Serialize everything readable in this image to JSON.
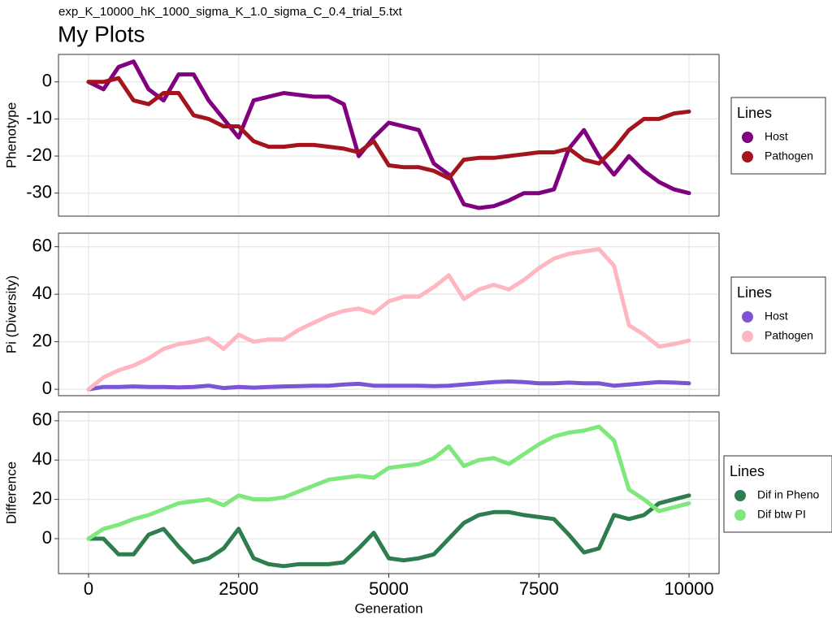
{
  "subtitle": "exp_K_10000_hK_1000_sigma_K_1.0_sigma_C_0.4_trial_5.txt",
  "title": "My Plots",
  "chart_data": [
    {
      "type": "line",
      "ylabel": "Phenotype",
      "legend_title": "Lines",
      "legend": "right",
      "grid": true,
      "xlim": [
        -500,
        10500
      ],
      "xticks": [
        0,
        2500,
        5000,
        7500,
        10000
      ],
      "ylim": [
        -36.2,
        7.4
      ],
      "yticks": [
        -30,
        -20,
        -10,
        0
      ],
      "x": [
        0,
        250,
        500,
        750,
        1000,
        1250,
        1500,
        1750,
        2000,
        2250,
        2500,
        2750,
        3000,
        3250,
        3500,
        3750,
        4000,
        4250,
        4500,
        4750,
        5000,
        5250,
        5500,
        5750,
        6000,
        6250,
        6500,
        6750,
        7000,
        7250,
        7500,
        7750,
        8000,
        8250,
        8500,
        8750,
        9000,
        9250,
        9500,
        9750,
        10000
      ],
      "series": [
        {
          "name": "Host",
          "color": "#800080",
          "values": [
            0,
            -2,
            4,
            5.5,
            -2,
            -5,
            2,
            2,
            -5,
            -10,
            -15,
            -5,
            -4,
            -3,
            -3.5,
            -4,
            -4,
            -6,
            -20,
            -15,
            -11,
            -12,
            -13,
            -22,
            -25,
            -33,
            -34,
            -33.5,
            -32,
            -30,
            -30,
            -29,
            -18,
            -13,
            -20,
            -25,
            -20,
            -24,
            -27,
            -29,
            -30
          ]
        },
        {
          "name": "Pathogen",
          "color": "#a3141c",
          "values": [
            0,
            0,
            1,
            -5,
            -6,
            -3,
            -3,
            -9,
            -10,
            -12,
            -12,
            -16,
            -17.5,
            -17.5,
            -17,
            -17,
            -17.5,
            -18,
            -19,
            -16,
            -22.5,
            -23,
            -23,
            -24,
            -26,
            -21,
            -20.5,
            -20.5,
            -20,
            -19.5,
            -19,
            -19,
            -18,
            -21,
            -22,
            -18,
            -13,
            -10,
            -10,
            -8.5,
            -8
          ]
        }
      ]
    },
    {
      "type": "line",
      "ylabel": "Pi (Diversity)",
      "legend_title": "Lines",
      "legend": "right",
      "grid": true,
      "xlim": [
        -500,
        10500
      ],
      "xticks": [
        0,
        2500,
        5000,
        7500,
        10000
      ],
      "ylim": [
        -2.7,
        65.7
      ],
      "yticks": [
        0,
        20,
        40,
        60
      ],
      "x": [
        0,
        250,
        500,
        750,
        1000,
        1250,
        1500,
        1750,
        2000,
        2250,
        2500,
        2750,
        3000,
        3250,
        3500,
        3750,
        4000,
        4250,
        4500,
        4750,
        5000,
        5250,
        5500,
        5750,
        6000,
        6250,
        6500,
        6750,
        7000,
        7250,
        7500,
        7750,
        8000,
        8250,
        8500,
        8750,
        9000,
        9250,
        9500,
        9750,
        10000
      ],
      "series": [
        {
          "name": "Host",
          "color": "#7b55d3",
          "values": [
            0,
            1,
            1,
            1.2,
            1,
            1,
            0.8,
            1,
            1.5,
            0.5,
            1,
            0.7,
            1,
            1.2,
            1.3,
            1.5,
            1.5,
            2,
            2.3,
            1.5,
            1.5,
            1.5,
            1.5,
            1.3,
            1.5,
            2,
            2.5,
            3,
            3.3,
            3,
            2.5,
            2.5,
            2.8,
            2.5,
            2.5,
            1.5,
            2,
            2.5,
            3,
            2.8,
            2.5
          ]
        },
        {
          "name": "Pathogen",
          "color": "#ffb6c1",
          "values": [
            0,
            5,
            8,
            10,
            13,
            17,
            19,
            20,
            21.5,
            17,
            23,
            20,
            21,
            21,
            25,
            28,
            31,
            33,
            34,
            32,
            37,
            39,
            39,
            43,
            48,
            38,
            42,
            44,
            42,
            46,
            51,
            55,
            57,
            58,
            59,
            52,
            27,
            23,
            18,
            19,
            20.5
          ]
        }
      ]
    },
    {
      "type": "line",
      "ylabel": "Difference",
      "xlabel": "Generation",
      "legend_title": "Lines",
      "legend": "right",
      "grid": true,
      "xlim": [
        -500,
        10500
      ],
      "xticks": [
        0,
        2500,
        5000,
        7500,
        10000
      ],
      "ylim": [
        -17.8,
        64.5
      ],
      "yticks": [
        0,
        20,
        40,
        60
      ],
      "x": [
        0,
        250,
        500,
        750,
        1000,
        1250,
        1500,
        1750,
        2000,
        2250,
        2500,
        2750,
        3000,
        3250,
        3500,
        3750,
        4000,
        4250,
        4500,
        4750,
        5000,
        5250,
        5500,
        5750,
        6000,
        6250,
        6500,
        6750,
        7000,
        7250,
        7500,
        7750,
        8000,
        8250,
        8500,
        8750,
        9000,
        9250,
        9500,
        9750,
        10000
      ],
      "series": [
        {
          "name": "Dif in Pheno",
          "color": "#2e7d4f",
          "values": [
            0,
            0,
            -8,
            -8,
            2,
            5,
            -4,
            -12,
            -10,
            -5,
            5,
            -10,
            -13,
            -14,
            -13,
            -13,
            -13,
            -12,
            -5,
            3,
            -10,
            -11,
            -10,
            -8,
            0,
            8,
            12,
            13.5,
            13.5,
            12,
            11,
            10,
            2,
            -7,
            -5,
            12,
            10,
            12,
            18,
            20,
            22
          ]
        },
        {
          "name": "Dif btw PI",
          "color": "#7fe87c",
          "values": [
            0,
            5,
            7,
            10,
            12,
            15,
            18,
            19,
            20,
            17,
            22,
            20,
            20,
            21,
            24,
            27,
            30,
            31,
            32,
            31,
            36,
            37,
            38,
            41,
            47,
            37,
            40,
            41,
            38,
            43,
            48,
            52,
            54,
            55,
            57,
            50,
            25,
            20,
            14,
            16,
            18
          ]
        }
      ]
    }
  ]
}
